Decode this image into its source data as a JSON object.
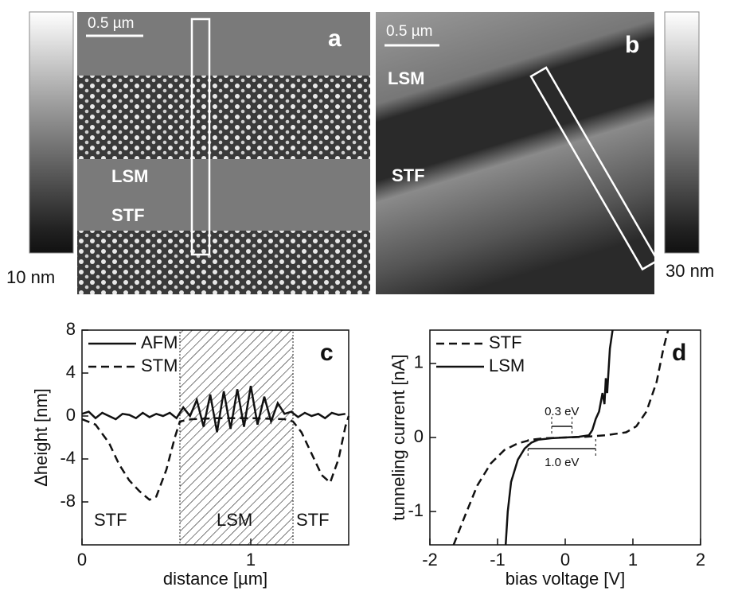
{
  "images": [
    {
      "colorbar_label": "10 nm",
      "scale_bar": "0.5 µm",
      "panel": "a",
      "labels": [
        "LSM",
        "STF"
      ]
    },
    {
      "colorbar_label": "30 nm",
      "scale_bar": "0.5 µm",
      "panel": "b",
      "labels": [
        "LSM",
        "STF"
      ]
    }
  ],
  "chart_data": [
    {
      "type": "line",
      "panel": "c",
      "x_label": "distance [µm]",
      "y_label": "Δheight [nm]",
      "xlim": [
        0,
        1.58
      ],
      "ylim": [
        -12,
        8
      ],
      "xticks": [
        0,
        1
      ],
      "yticks": [
        -8,
        -4,
        0,
        4,
        8
      ],
      "shaded_range": [
        0.58,
        1.25
      ],
      "legend": "top-left",
      "annotations": [
        "STF",
        "LSM",
        "STF"
      ],
      "series": [
        {
          "name": "AFM",
          "color": "#111111",
          "dash": false,
          "x": [
            0,
            0.04,
            0.08,
            0.12,
            0.16,
            0.2,
            0.24,
            0.28,
            0.32,
            0.36,
            0.4,
            0.44,
            0.48,
            0.52,
            0.56,
            0.6,
            0.64,
            0.68,
            0.72,
            0.76,
            0.8,
            0.84,
            0.88,
            0.92,
            0.96,
            1,
            1.04,
            1.08,
            1.12,
            1.16,
            1.2,
            1.24,
            1.28,
            1.32,
            1.36,
            1.4,
            1.44,
            1.48,
            1.52,
            1.56
          ],
          "values": [
            0.2,
            0.4,
            -0.2,
            0.3,
            0,
            -0.3,
            0.2,
            0.1,
            -0.2,
            0.3,
            -0.1,
            0.2,
            0,
            0.3,
            -0.2,
            0.8,
            0,
            1.5,
            -1,
            2,
            -1.5,
            2.3,
            -1.2,
            2.5,
            -1,
            2.8,
            -0.8,
            1.8,
            -0.5,
            1.2,
            0.2,
            0.4,
            -0.1,
            0.3,
            0,
            0.2,
            -0.2,
            0.3,
            0.1,
            0.2
          ]
        },
        {
          "name": "STM",
          "color": "#111111",
          "dash": true,
          "x": [
            0,
            0.08,
            0.16,
            0.22,
            0.28,
            0.34,
            0.4,
            0.44,
            0.5,
            0.55,
            0.58,
            0.65,
            0.8,
            1,
            1.2,
            1.25,
            1.3,
            1.36,
            1.42,
            1.47,
            1.52,
            1.56,
            1.58
          ],
          "values": [
            -0.3,
            -0.8,
            -2.5,
            -4.5,
            -6,
            -7,
            -7.8,
            -7.5,
            -5,
            -2,
            -0.5,
            -0.3,
            -0.2,
            -0.2,
            -0.3,
            -0.5,
            -1.5,
            -3.5,
            -5.5,
            -6.2,
            -4,
            -1,
            0
          ]
        }
      ]
    },
    {
      "type": "line",
      "panel": "d",
      "x_label": "bias voltage [V]",
      "y_label": "tunneling current [nA]",
      "xlim": [
        -2,
        2
      ],
      "ylim": [
        -1.45,
        1.45
      ],
      "xticks": [
        -2,
        -1,
        0,
        1,
        2
      ],
      "yticks": [
        -1,
        0,
        1
      ],
      "legend": "top-left",
      "gaps": [
        {
          "label": "0.3 eV",
          "range": [
            -0.2,
            0.1
          ],
          "y": 0.15
        },
        {
          "label": "1.0 eV",
          "range": [
            -0.55,
            0.45
          ],
          "y": -0.15
        }
      ],
      "series": [
        {
          "name": "STF",
          "color": "#111111",
          "dash": true,
          "x": [
            -1.65,
            -1.5,
            -1.3,
            -1.1,
            -0.9,
            -0.7,
            -0.5,
            -0.3,
            0,
            0.3,
            0.6,
            0.9,
            1.05,
            1.2,
            1.35,
            1.45,
            1.52
          ],
          "values": [
            -1.45,
            -1.1,
            -0.65,
            -0.35,
            -0.17,
            -0.08,
            -0.03,
            -0.01,
            0,
            0.01,
            0.03,
            0.07,
            0.15,
            0.35,
            0.75,
            1.2,
            1.45
          ]
        },
        {
          "name": "LSM",
          "color": "#111111",
          "dash": false,
          "x": [
            -0.88,
            -0.85,
            -0.8,
            -0.7,
            -0.6,
            -0.5,
            -0.4,
            -0.2,
            0,
            0.2,
            0.35,
            0.4,
            0.45,
            0.5,
            0.55,
            0.58,
            0.6,
            0.62,
            0.66,
            0.7
          ],
          "values": [
            -1.45,
            -1.0,
            -0.6,
            -0.3,
            -0.15,
            -0.07,
            -0.03,
            -0.01,
            0,
            0.01,
            0.03,
            0.1,
            0.25,
            0.35,
            0.6,
            0.45,
            0.8,
            0.6,
            1.2,
            1.45
          ]
        }
      ]
    }
  ]
}
